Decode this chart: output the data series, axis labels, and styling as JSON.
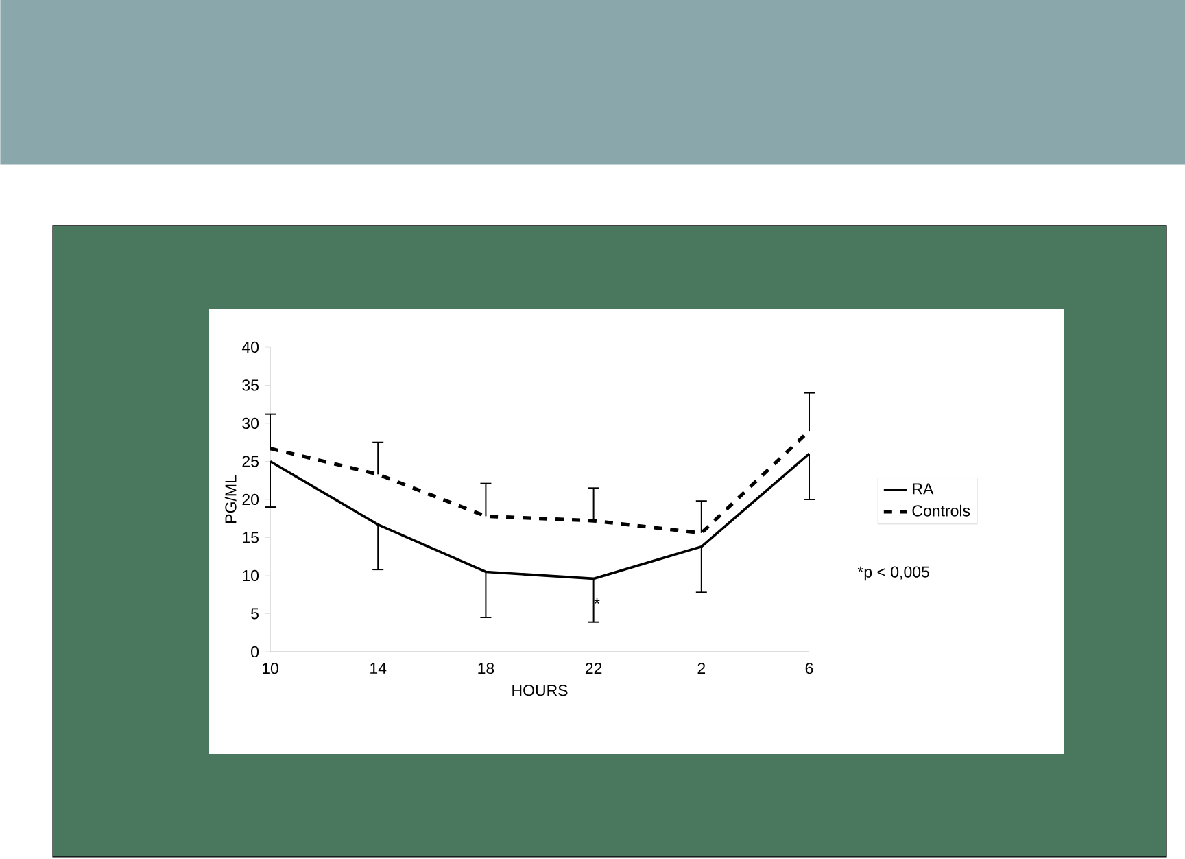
{
  "chart_data": {
    "type": "line",
    "xlabel": "HOURS",
    "ylabel": "PG/ML",
    "categories": [
      "10",
      "14",
      "18",
      "22",
      "2",
      "6"
    ],
    "series": [
      {
        "name": "RA",
        "color": "#000000",
        "line_style": "solid",
        "values": [
          25,
          16.7,
          10.5,
          9.6,
          13.8,
          26
        ],
        "errors": [
          [
            19,
            25
          ],
          [
            10.8,
            16.7
          ],
          [
            4.5,
            10.5
          ],
          [
            3.9,
            9.6
          ],
          [
            7.8,
            13.8
          ],
          [
            20,
            26
          ]
        ]
      },
      {
        "name": "Controls",
        "color": "#000000",
        "line_style": "dashed",
        "values": [
          26.7,
          23.3,
          17.8,
          17.2,
          15.6,
          29
        ],
        "errors": [
          [
            26.7,
            31.2
          ],
          [
            23.3,
            27.5
          ],
          [
            17.8,
            22.1
          ],
          [
            17.2,
            21.5
          ],
          [
            15.6,
            19.8
          ],
          [
            29,
            34
          ]
        ]
      }
    ],
    "ylim": [
      0,
      40
    ],
    "yticks": [
      0,
      5,
      10,
      15,
      20,
      25,
      30,
      35,
      40
    ],
    "grid": false,
    "legend": "right",
    "marker": "none",
    "annotations": [
      {
        "text": "*",
        "x": "22",
        "y": 9.6
      },
      "*p < 0,005"
    ]
  }
}
